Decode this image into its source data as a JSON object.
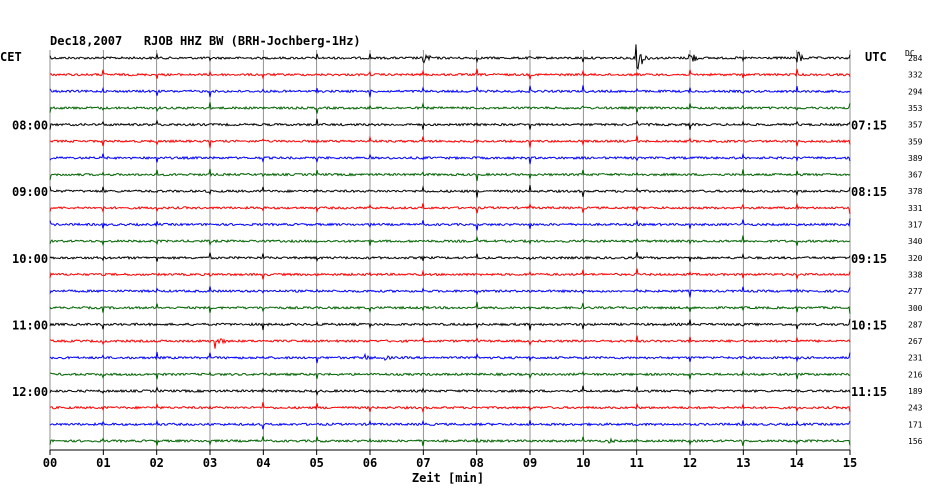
{
  "header": {
    "title": "Dec18,2007   RJOB HHZ BW (BRH-Jochberg-1Hz)",
    "left_tz": "CET",
    "right_tz": "UTC",
    "dc_label": "DC"
  },
  "chart_data": {
    "type": "line",
    "title": "Dec18,2007   RJOB HHZ BW (BRH-Jochberg-1Hz)",
    "xlabel": "Zeit [min]",
    "x_ticks": [
      "00",
      "01",
      "02",
      "03",
      "04",
      "05",
      "06",
      "07",
      "08",
      "09",
      "10",
      "11",
      "12",
      "13",
      "14",
      "15"
    ],
    "xlim": [
      0,
      15
    ],
    "grid": true,
    "left_time_labels": [
      "08:00",
      "09:00",
      "10:00",
      "11:00",
      "12:00"
    ],
    "right_time_labels": [
      "07:15",
      "08:15",
      "09:15",
      "10:15",
      "11:15"
    ],
    "trace_colors": [
      "#000000",
      "#ff0000",
      "#0000ff",
      "#006400"
    ],
    "dc_offsets": [
      284,
      332,
      294,
      353,
      357,
      359,
      389,
      367,
      378,
      331,
      317,
      340,
      320,
      338,
      277,
      300,
      287,
      267,
      231,
      216,
      189,
      243,
      171,
      156
    ],
    "events": [
      {
        "trace": 17,
        "minute": 3.1,
        "amplitude": 10
      },
      {
        "trace": 18,
        "minute": 5.9,
        "amplitude": 4
      },
      {
        "trace": 18,
        "minute": 6.3,
        "amplitude": 3
      },
      {
        "trace": 23,
        "minute": 10.5,
        "amplitude": 3
      },
      {
        "trace": 0,
        "minute": 11.0,
        "amplitude": 18
      },
      {
        "trace": 0,
        "minute": 14.0,
        "amplitude": 10
      },
      {
        "trace": 0,
        "minute": 12.0,
        "amplitude": 9
      },
      {
        "trace": 0,
        "minute": 7.0,
        "amplitude": 8
      }
    ]
  }
}
